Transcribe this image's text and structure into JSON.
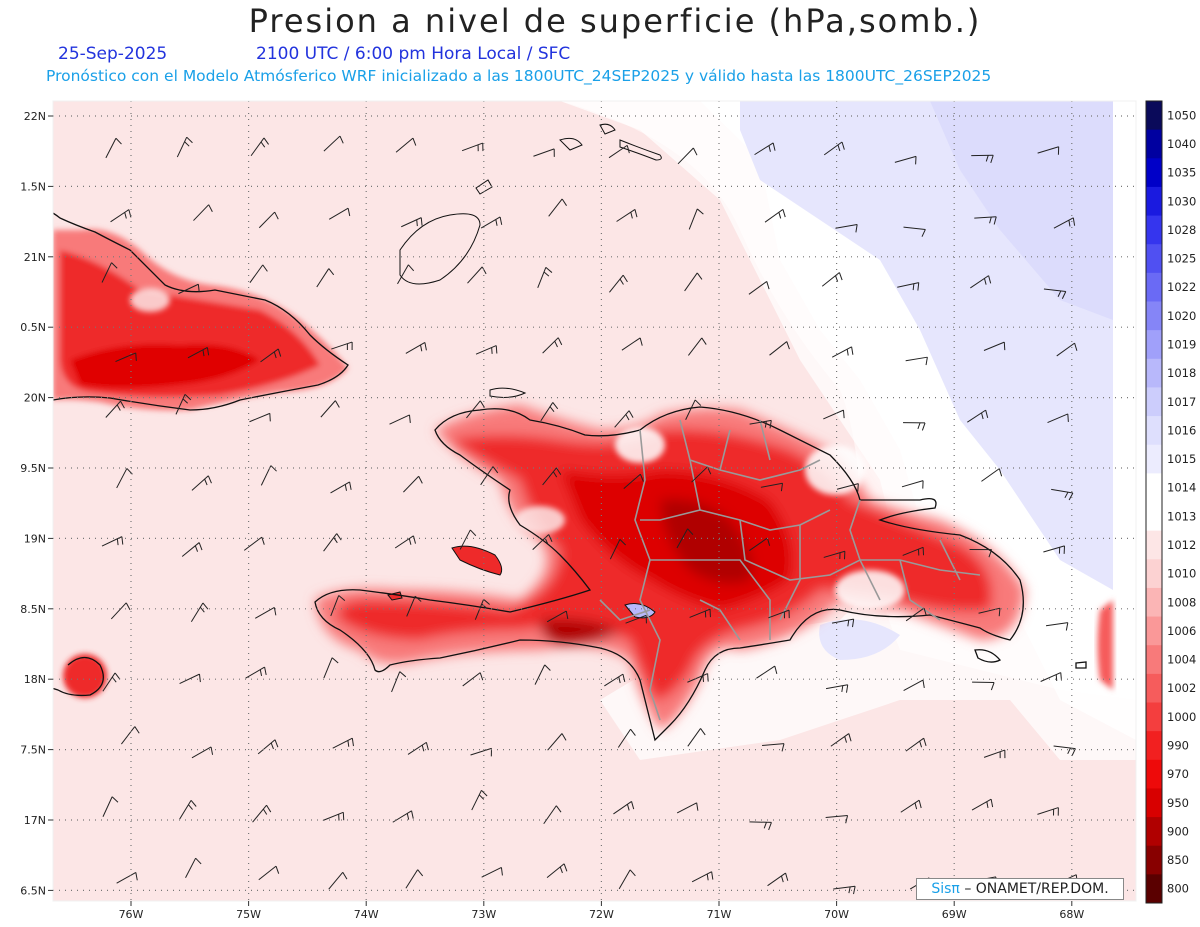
{
  "title": "Presion a nivel de superficie (hPa,somb.)",
  "date": "25-Sep-2025",
  "time_info": "2100 UTC / 6:00 pm Hora Local / SFC",
  "forecast_info": "Pronóstico con el Modelo Atmósferico WRF inicializado a las 1800UTC_24SEP2025 y válido hasta las  1800UTC_26SEP2025",
  "credit": {
    "brand": "Sisπ",
    "org": "– ONAMET/REP.DOM."
  },
  "lat_labels": [
    "22N",
    "1.5N",
    "21N",
    "0.5N",
    "20N",
    "9.5N",
    "19N",
    "8.5N",
    "18N",
    "7.5N",
    "17N",
    "6.5N"
  ],
  "lon_labels": [
    "76W",
    "75W",
    "74W",
    "73W",
    "72W",
    "71W",
    "70W",
    "69W",
    "68W"
  ],
  "colorbar": {
    "levels": [
      "1050",
      "1040",
      "1035",
      "1030",
      "1028",
      "1025",
      "1022",
      "1020",
      "1019",
      "1018",
      "1017",
      "1016",
      "1015",
      "1014",
      "1013",
      "1012",
      "1010",
      "1008",
      "1006",
      "1004",
      "1002",
      "1000",
      "990",
      "970",
      "950",
      "900",
      "850",
      "800"
    ],
    "colors": [
      "#0a0a5a",
      "#0000a0",
      "#0000c8",
      "#1a1ae0",
      "#3535ee",
      "#5050f2",
      "#6a6af5",
      "#8585f7",
      "#a0a0fa",
      "#b8b8fb",
      "#cccdfc",
      "#dedffd",
      "#ececfe",
      "#ffffff",
      "#ffffff",
      "#fde6e6",
      "#fcd2d2",
      "#fbb5b5",
      "#fa9898",
      "#f87a7a",
      "#f65c5c",
      "#f43e3e",
      "#f22020",
      "#ee0a0a",
      "#d80000",
      "#b00000",
      "#880000",
      "#5a0000"
    ]
  },
  "colors": {
    "background": "#fdeaea",
    "land_red": "#ee2a2a",
    "high_pressure": "#e6e6fd",
    "coast": "#111111",
    "borders": "#9a9a9a"
  }
}
